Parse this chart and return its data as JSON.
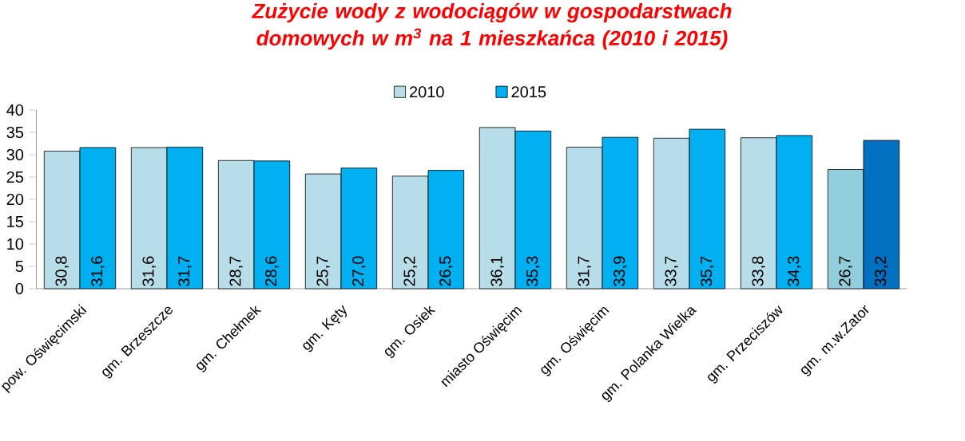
{
  "chart_data": {
    "type": "bar",
    "title": "Zużycie wody z wodociągów w gospodarstwach domowych w m$^{3}$ na 1 mieszkańca (2010 i 2015)",
    "categories": [
      "pow. Oświęcimski",
      "gm. Brzeszcze",
      "gm. Chełmek",
      "gm. Kęty",
      "gm. Osiek",
      "miasto Oświęcim",
      "gm. Oświęcim",
      "gm. Polanka Wielka",
      "gm. Przeciszów",
      "gm. m.w.Zator"
    ],
    "series": [
      {
        "name": "2010",
        "color": "#b7dee8",
        "colors": [
          "#b7dee8",
          "#b7dee8",
          "#b7dee8",
          "#b7dee8",
          "#b7dee8",
          "#b7dee8",
          "#b7dee8",
          "#b7dee8",
          "#b7dee8",
          "#92cddc"
        ],
        "values": [
          30.8,
          31.6,
          28.7,
          25.7,
          25.2,
          36.1,
          31.7,
          33.7,
          33.8,
          26.7
        ],
        "value_labels": [
          "30,8",
          "31,6",
          "28,7",
          "25,7",
          "25,2",
          "36,1",
          "31,7",
          "33,7",
          "33,8",
          "26,7"
        ]
      },
      {
        "name": "2015",
        "color": "#00b0f0",
        "colors": [
          "#00b0f0",
          "#00b0f0",
          "#00b0f0",
          "#00b0f0",
          "#00b0f0",
          "#00b0f0",
          "#00b0f0",
          "#00b0f0",
          "#00b0f0",
          "#0070c0"
        ],
        "values": [
          31.6,
          31.7,
          28.6,
          27.0,
          26.5,
          35.3,
          33.9,
          35.7,
          34.3,
          33.2
        ],
        "value_labels": [
          "31,6",
          "31,7",
          "28,6",
          "27,0",
          "26,5",
          "35,3",
          "33,9",
          "35,7",
          "34,3",
          "33,2"
        ]
      }
    ],
    "ylim": [
      0,
      40
    ],
    "yticks": [
      0,
      5,
      10,
      15,
      20,
      25,
      30,
      35,
      40
    ],
    "legend": "top"
  }
}
